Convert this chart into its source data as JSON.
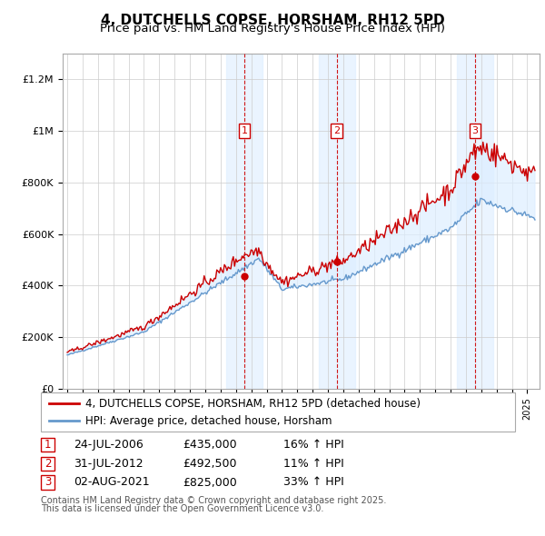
{
  "title": "4, DUTCHELLS COPSE, HORSHAM, RH12 5PD",
  "subtitle": "Price paid vs. HM Land Registry's House Price Index (HPI)",
  "ylim": [
    0,
    1300000
  ],
  "yticks": [
    0,
    200000,
    400000,
    600000,
    800000,
    1000000,
    1200000
  ],
  "ytick_labels": [
    "£0",
    "£200K",
    "£400K",
    "£600K",
    "£800K",
    "£1M",
    "£1.2M"
  ],
  "background_color": "#ffffff",
  "plot_bg_color": "#ffffff",
  "grid_color": "#cccccc",
  "fill_color": "#ddeeff",
  "hpi_line_color": "#6699cc",
  "price_line_color": "#cc0000",
  "sale_marker_color": "#cc0000",
  "dashed_line_color": "#cc0000",
  "legend_label_price": "4, DUTCHELLS COPSE, HORSHAM, RH12 5PD (detached house)",
  "legend_label_hpi": "HPI: Average price, detached house, Horsham",
  "sales": [
    {
      "num": 1,
      "date_label": "24-JUL-2006",
      "year": 2006.56,
      "price": 435000,
      "hpi_pct": "16% ↑ HPI"
    },
    {
      "num": 2,
      "date_label": "31-JUL-2012",
      "year": 2012.58,
      "price": 492500,
      "hpi_pct": "11% ↑ HPI"
    },
    {
      "num": 3,
      "date_label": "02-AUG-2021",
      "year": 2021.59,
      "price": 825000,
      "hpi_pct": "33% ↑ HPI"
    }
  ],
  "footnote1": "Contains HM Land Registry data © Crown copyright and database right 2025.",
  "footnote2": "This data is licensed under the Open Government Licence v3.0.",
  "title_fontsize": 11,
  "subtitle_fontsize": 9.5,
  "tick_fontsize": 8,
  "legend_fontsize": 8.5,
  "table_fontsize": 9,
  "footnote_fontsize": 7
}
